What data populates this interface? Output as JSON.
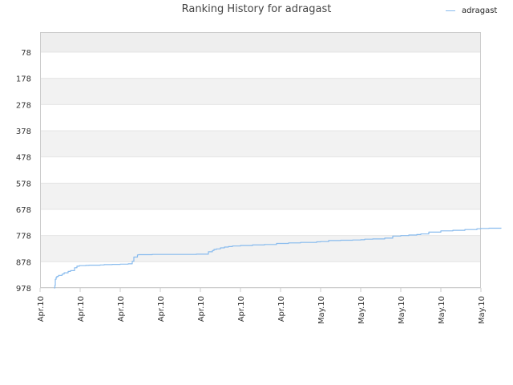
{
  "chart_data": {
    "type": "line",
    "title": "Ranking History for adragast",
    "xlabel": "",
    "ylabel": "",
    "legend_position": "top-right",
    "grid": true,
    "y_reversed": true,
    "ylim": [
      978,
      0
    ],
    "y_ticks": [
      78,
      178,
      278,
      378,
      478,
      578,
      678,
      778,
      878,
      978
    ],
    "x_tick_labels": [
      "Apr.10",
      "Apr.10",
      "Apr.10",
      "Apr.10",
      "Apr.10",
      "Apr.10",
      "Apr.10",
      "May.10",
      "May.10",
      "May.10",
      "May.10",
      "May.10"
    ],
    "colors": {
      "line": "#88bbee",
      "band": "#f2f2f2",
      "band_top": "#eeeeee",
      "grid": "#e4e4e4",
      "axis": "#cccccc",
      "tick_text": "#333333"
    },
    "series": [
      {
        "name": "adragast",
        "x_tick_position": [
          0.35,
          0.37,
          0.38,
          0.4,
          0.42,
          0.46,
          0.55,
          0.6,
          0.7,
          0.76,
          0.81,
          0.86,
          0.92,
          0.98,
          1.0,
          1.08,
          1.14,
          1.22,
          1.3,
          1.4,
          1.5,
          1.6,
          1.8,
          2.0,
          2.2,
          2.3,
          2.34,
          2.43,
          2.46,
          2.5,
          2.8,
          3.2,
          3.6,
          3.9,
          4.0,
          4.1,
          4.2,
          4.3,
          4.34,
          4.4,
          4.5,
          4.6,
          4.7,
          4.8,
          5.0,
          5.3,
          5.6,
          5.9,
          6.2,
          6.5,
          6.7,
          6.9,
          7.0,
          7.2,
          7.5,
          7.8,
          8.0,
          8.1,
          8.3,
          8.6,
          8.8,
          9.0,
          9.2,
          9.4,
          9.5,
          9.7,
          10.0,
          10.3,
          10.6,
          10.9,
          11.0,
          11.2,
          11.5
        ]
      }
    ]
  },
  "series_values": [
    978,
    968,
    945,
    938,
    934,
    930,
    925,
    920,
    915,
    912,
    912,
    901,
    895,
    893,
    893,
    893,
    892,
    891,
    891,
    891,
    890,
    889,
    888,
    887,
    886,
    876,
    860,
    852,
    851,
    851,
    850,
    850,
    850,
    849,
    849,
    849,
    840,
    835,
    831,
    829,
    825,
    822,
    820,
    818,
    816,
    814,
    812,
    808,
    806,
    804,
    804,
    802,
    801,
    797,
    796,
    795,
    794,
    792,
    791,
    788,
    780,
    778,
    776,
    774,
    772,
    765,
    760,
    758,
    755,
    752,
    751,
    750,
    748
  ]
}
